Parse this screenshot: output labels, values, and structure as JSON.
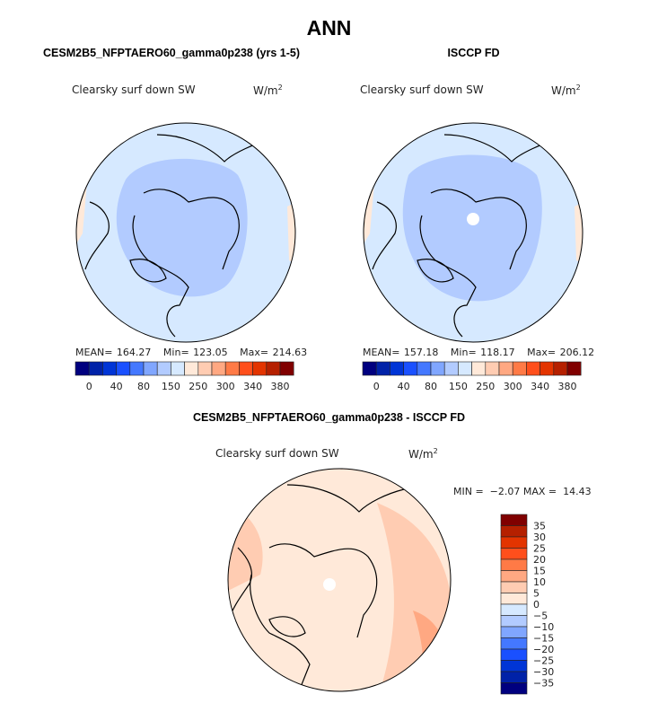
{
  "title": "ANN",
  "panels": [
    {
      "title": "CESM2B5_NFPTAERO60_gamma0p238 (yrs 1-5)",
      "variable": "Clearsky surf down SW",
      "units": "W/m",
      "units_exp": "2",
      "stats": {
        "mean_label": "MEAN=",
        "mean": "164.27",
        "min_label": "Min=",
        "min": "123.05",
        "max_label": "Max=",
        "max": "214.63"
      },
      "pole_hole": false
    },
    {
      "title": "ISCCP FD",
      "variable": "Clearsky surf down SW",
      "units": "W/m",
      "units_exp": "2",
      "stats": {
        "mean_label": "MEAN=",
        "mean": "157.18",
        "min_label": "Min=",
        "min": "118.17",
        "max_label": "Max=",
        "max": "206.12"
      },
      "pole_hole": true
    }
  ],
  "diff_panel": {
    "title": "CESM2B5_NFPTAERO60_gamma0p238 - ISCCP FD",
    "variable": "Clearsky surf down SW",
    "units": "W/m",
    "units_exp": "2",
    "stats_text": "MIN =  −2.07 MAX =  14.43"
  },
  "colorbar": {
    "colors": [
      "#00007f",
      "#0022a8",
      "#0035d6",
      "#1a50ff",
      "#4478ff",
      "#80a6ff",
      "#b2cbff",
      "#d6e9ff",
      "#ffe9d9",
      "#ffccb2",
      "#ffa882",
      "#ff7a46",
      "#ff4f1c",
      "#e33400",
      "#b52000",
      "#800000"
    ],
    "abs_labels": [
      "0",
      "40",
      "80",
      "150",
      "250",
      "300",
      "340",
      "380"
    ],
    "diff_labels": [
      "35",
      "30",
      "25",
      "20",
      "15",
      "10",
      "5",
      "0",
      "−5",
      "−10",
      "−15",
      "−20",
      "−25",
      "−30",
      "−35"
    ]
  }
}
